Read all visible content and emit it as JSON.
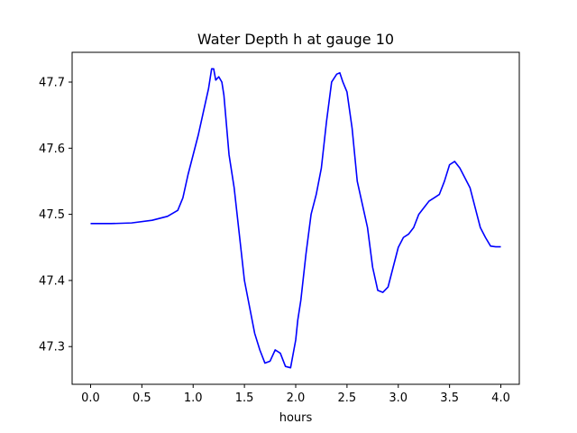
{
  "chart_data": {
    "type": "line",
    "title": "Water Depth h at gauge 10",
    "xlabel": "hours",
    "ylabel": "",
    "xlim": [
      -0.18,
      4.18
    ],
    "ylim": [
      47.243,
      47.745
    ],
    "xticks": [
      0.0,
      0.5,
      1.0,
      1.5,
      2.0,
      2.5,
      3.0,
      3.5,
      4.0
    ],
    "xtick_labels": [
      "0.0",
      "0.5",
      "1.0",
      "1.5",
      "2.0",
      "2.5",
      "3.0",
      "3.5",
      "4.0"
    ],
    "yticks": [
      47.3,
      47.4,
      47.5,
      47.6,
      47.7
    ],
    "ytick_labels": [
      "47.3",
      "47.4",
      "47.5",
      "47.6",
      "47.7"
    ],
    "grid": false,
    "series": [
      {
        "color": "#0000ff",
        "x": [
          0.0,
          0.2,
          0.4,
          0.6,
          0.75,
          0.85,
          0.9,
          0.95,
          1.0,
          1.05,
          1.1,
          1.15,
          1.18,
          1.2,
          1.22,
          1.25,
          1.28,
          1.3,
          1.35,
          1.4,
          1.45,
          1.5,
          1.55,
          1.6,
          1.65,
          1.7,
          1.75,
          1.8,
          1.85,
          1.9,
          1.95,
          2.0,
          2.02,
          2.05,
          2.1,
          2.15,
          2.2,
          2.25,
          2.3,
          2.35,
          2.4,
          2.43,
          2.46,
          2.5,
          2.55,
          2.6,
          2.65,
          2.7,
          2.75,
          2.8,
          2.85,
          2.9,
          2.95,
          3.0,
          3.05,
          3.1,
          3.15,
          3.2,
          3.25,
          3.3,
          3.35,
          3.4,
          3.45,
          3.5,
          3.55,
          3.6,
          3.65,
          3.7,
          3.75,
          3.8,
          3.85,
          3.9,
          3.95,
          4.0
        ],
        "y": [
          47.486,
          47.486,
          47.487,
          47.491,
          47.497,
          47.506,
          47.525,
          47.56,
          47.59,
          47.62,
          47.655,
          47.69,
          47.72,
          47.72,
          47.703,
          47.708,
          47.7,
          47.68,
          47.59,
          47.54,
          47.47,
          47.4,
          47.36,
          47.32,
          47.295,
          47.275,
          47.278,
          47.295,
          47.29,
          47.27,
          47.268,
          47.31,
          47.34,
          47.37,
          47.44,
          47.5,
          47.53,
          47.57,
          47.64,
          47.7,
          47.712,
          47.714,
          47.7,
          47.685,
          47.63,
          47.55,
          47.515,
          47.48,
          47.42,
          47.385,
          47.382,
          47.39,
          47.42,
          47.45,
          47.465,
          47.47,
          47.48,
          47.5,
          47.51,
          47.52,
          47.525,
          47.53,
          47.55,
          47.575,
          47.58,
          47.57,
          47.555,
          47.54,
          47.51,
          47.48,
          47.465,
          47.452,
          47.451,
          47.451
        ]
      }
    ]
  }
}
